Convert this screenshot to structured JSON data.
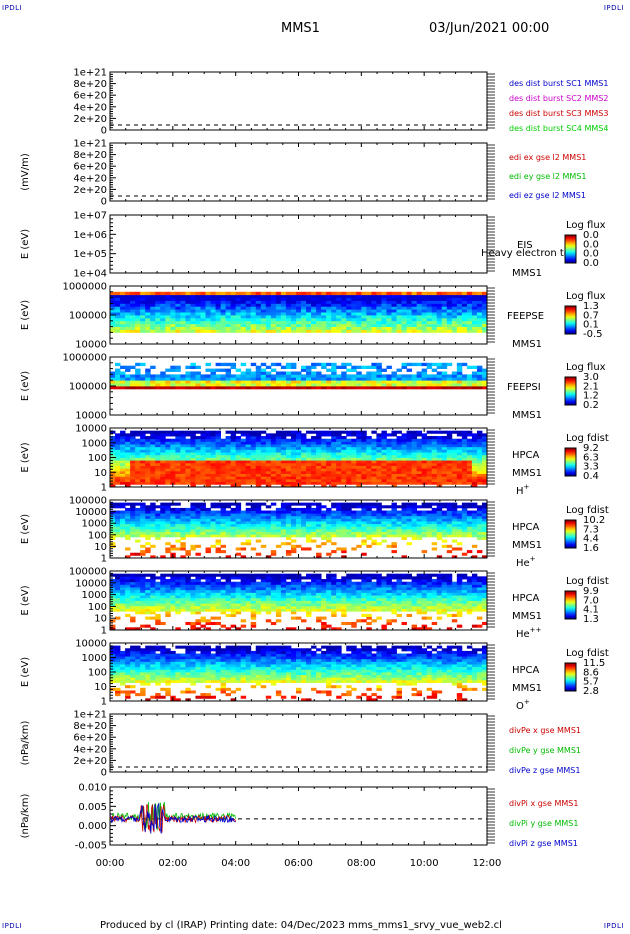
{
  "corner_marks": {
    "tl": "IPDLI",
    "tr": "IPDLI",
    "bl": "IPDLI",
    "br": "IPDLI"
  },
  "header": {
    "spacecraft": "MMS1",
    "date": "03/Jun/2021 00:00"
  },
  "footer": {
    "text": "Produced by cl (IRAP)   Printing date: 04/Dec/2023   mms_mms1_srvy_vue_web2.cl"
  },
  "colors": {
    "mms1": "#0000cc",
    "mms2": "#cc00cc",
    "mms3": "#cc0000",
    "mms4": "#00cc00",
    "x": "#cc0000",
    "y": "#00bb00",
    "z": "#0000cc"
  },
  "chart_data": [
    {
      "type": "line",
      "id": "des-dist",
      "ylabel": "",
      "yticks": [
        "0",
        "2e+20",
        "4e+20",
        "6e+20",
        "8e+20",
        "1e+21"
      ],
      "ylim": [
        0,
        1e+21
      ],
      "series": [
        {
          "name": "des dist burst SC1 MMS1",
          "values": []
        },
        {
          "name": "des dist burst SC2 MMS2",
          "values": []
        },
        {
          "name": "des dist burst SC3 MMS3",
          "values": []
        },
        {
          "name": "des dist burst SC4 MMS4",
          "values": []
        }
      ],
      "zero_line": "dashed"
    },
    {
      "type": "line",
      "id": "edi-e",
      "ylabel": "(mV/m)",
      "yticks": [
        "0",
        "2e+20",
        "4e+20",
        "6e+20",
        "8e+20",
        "1e+21"
      ],
      "ylim": [
        0,
        1e+21
      ],
      "series": [
        {
          "name": "edi ex gse l2 MMS1",
          "values": []
        },
        {
          "name": "edi ey gse l2 MMS1",
          "values": []
        },
        {
          "name": "edi ez gse l2 MMS1",
          "values": []
        }
      ],
      "zero_line": "dashed"
    },
    {
      "type": "heatmap",
      "id": "eis",
      "ylabel": "E (eV)",
      "scale": "log",
      "yticks": [
        "1e+04",
        "1e+05",
        "1e+06",
        "1e+07"
      ],
      "ylim": [
        10000.0,
        10000000.0
      ],
      "labels": [
        "EIS",
        "MMS1"
      ],
      "overlay_text": "Heavy electron tof",
      "colorbar_title": "Log flux",
      "colorbar_ticks": [
        "0.0",
        "0.0",
        "0.0",
        "0.0"
      ],
      "empty": true
    },
    {
      "type": "heatmap",
      "id": "feepse",
      "ylabel": "E (eV)",
      "scale": "log",
      "yticks": [
        "10000",
        "100000",
        "1000000"
      ],
      "ylim": [
        10000.0,
        1000000.0
      ],
      "labels": [
        "FEEPSE",
        "MMS1"
      ],
      "colorbar_title": "Log flux",
      "colorbar_ticks": [
        "1.3",
        "0.7",
        "0.1",
        "-0.5"
      ]
    },
    {
      "type": "heatmap",
      "id": "feepsi",
      "ylabel": "E (eV)",
      "scale": "log",
      "yticks": [
        "10000",
        "100000",
        "1000000"
      ],
      "ylim": [
        10000.0,
        1000000.0
      ],
      "labels": [
        "FEEPSI",
        "MMS1"
      ],
      "colorbar_title": "Log flux",
      "colorbar_ticks": [
        "3.0",
        "2.1",
        "1.2",
        "0.2"
      ]
    },
    {
      "type": "heatmap",
      "id": "hpca-h",
      "ylabel": "E (eV)",
      "scale": "log",
      "yticks": [
        "1",
        "10",
        "100",
        "1000",
        "10000"
      ],
      "ylim": [
        1,
        10000.0
      ],
      "labels": [
        "HPCA",
        "MMS1",
        "H"
      ],
      "species_sup": "+",
      "colorbar_title": "Log fdist",
      "colorbar_ticks": [
        "9.2",
        "6.3",
        "3.3",
        "0.4"
      ]
    },
    {
      "type": "heatmap",
      "id": "hpca-he1",
      "ylabel": "E (eV)",
      "scale": "log",
      "yticks": [
        "1",
        "10",
        "100",
        "1000",
        "10000",
        "100000"
      ],
      "ylim": [
        1,
        100000.0
      ],
      "labels": [
        "HPCA",
        "MMS1",
        "He"
      ],
      "species_sup": "+",
      "colorbar_title": "Log fdist",
      "colorbar_ticks": [
        "10.2",
        "7.3",
        "4.4",
        "1.6"
      ]
    },
    {
      "type": "heatmap",
      "id": "hpca-he2",
      "ylabel": "E (eV)",
      "scale": "log",
      "yticks": [
        "1",
        "10",
        "100",
        "1000",
        "10000",
        "100000"
      ],
      "ylim": [
        1,
        100000.0
      ],
      "labels": [
        "HPCA",
        "MMS1",
        "He"
      ],
      "species_sup": "++",
      "colorbar_title": "Log fdist",
      "colorbar_ticks": [
        "9.9",
        "7.0",
        "4.1",
        "1.3"
      ]
    },
    {
      "type": "heatmap",
      "id": "hpca-o",
      "ylabel": "E (eV)",
      "scale": "log",
      "yticks": [
        "1",
        "10",
        "100",
        "1000",
        "10000"
      ],
      "ylim": [
        1,
        10000.0
      ],
      "labels": [
        "HPCA",
        "MMS1",
        "O"
      ],
      "species_sup": "+",
      "colorbar_title": "Log fdist",
      "colorbar_ticks": [
        "11.5",
        "8.6",
        "5.7",
        "2.8"
      ]
    },
    {
      "type": "line",
      "id": "divpe",
      "ylabel": "(nPa/km)",
      "yticks": [
        "0",
        "2e+20",
        "4e+20",
        "6e+20",
        "8e+20",
        "1e+21"
      ],
      "ylim": [
        0,
        1e+21
      ],
      "series": [
        {
          "name": "divPe x gse MMS1",
          "values": []
        },
        {
          "name": "divPe y gse MMS1",
          "values": []
        },
        {
          "name": "divPe z gse MMS1",
          "values": []
        }
      ],
      "zero_line": "dashed"
    },
    {
      "type": "line",
      "id": "divpi",
      "ylabel": "(nPa/km)",
      "yticks": [
        "-0.005",
        "0.000",
        "0.005",
        "0.010"
      ],
      "ylim": [
        -0.009,
        0.011
      ],
      "data_extent_hours": [
        0,
        4
      ],
      "series": [
        {
          "name": "divPi x gse MMS1"
        },
        {
          "name": "divPi y gse MMS1"
        },
        {
          "name": "divPi z gse MMS1"
        }
      ],
      "zero_line": "dashed"
    }
  ],
  "xaxis": {
    "ticks": [
      "00:00",
      "02:00",
      "04:00",
      "06:00",
      "08:00",
      "10:00",
      "12:00"
    ],
    "range_hours": [
      0,
      12
    ]
  }
}
